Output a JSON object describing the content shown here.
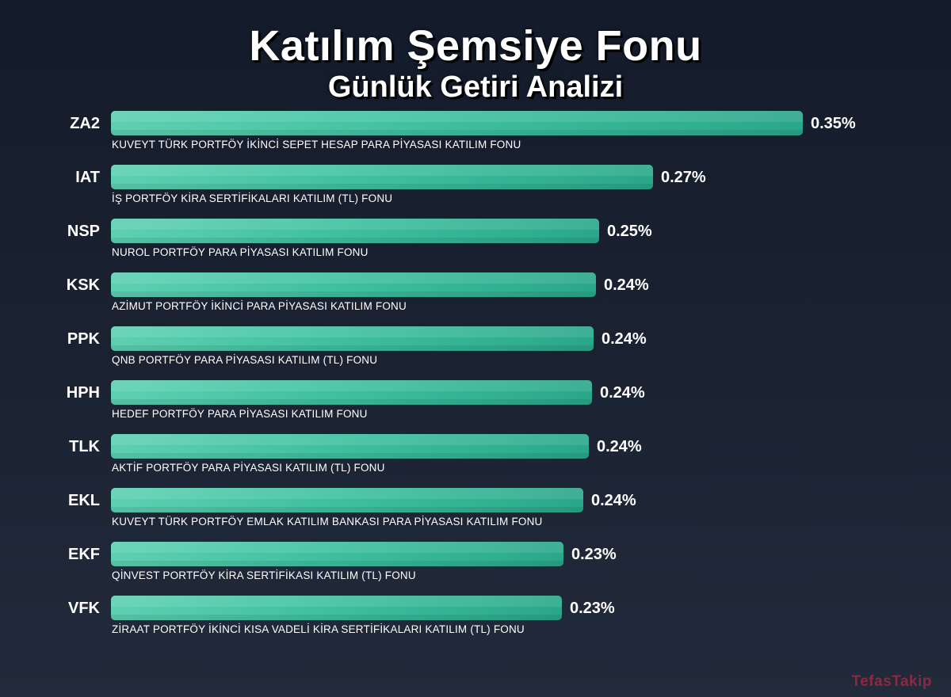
{
  "header": {
    "title": "Katılım Şemsiye Fonu",
    "subtitle": "Günlük Getiri Analizi"
  },
  "watermark": "TefasTakip",
  "colors": {
    "bar_start": "#5ed0b2",
    "bar_end": "#2aa78a",
    "background": "#1b2333",
    "watermark": "#8a2a42"
  },
  "chart_data": {
    "type": "bar",
    "orientation": "horizontal",
    "title": "Katılım Şemsiye Fonu",
    "subtitle": "Günlük Getiri Analizi",
    "xlabel": "",
    "ylabel": "",
    "grid": false,
    "unit": "%",
    "categories": [
      "ZA2",
      "IAT",
      "NSP",
      "KSK",
      "PPK",
      "HPH",
      "TLK",
      "EKL",
      "EKF",
      "VFK"
    ],
    "values": [
      0.35,
      0.27,
      0.25,
      0.24,
      0.24,
      0.24,
      0.24,
      0.24,
      0.23,
      0.23
    ],
    "bar_fraction": [
      1.0,
      0.783,
      0.706,
      0.701,
      0.698,
      0.695,
      0.691,
      0.683,
      0.654,
      0.652
    ],
    "labels": [
      "0.35%",
      "0.27%",
      "0.25%",
      "0.24%",
      "0.24%",
      "0.24%",
      "0.24%",
      "0.24%",
      "0.23%",
      "0.23%"
    ],
    "fund_names": [
      "KUVEYT TÜRK PORTFÖY İKİNCİ SEPET HESAP PARA PİYASASI KATILIM FONU",
      "İŞ PORTFÖY KİRA SERTİFİKALARI KATILIM (TL) FONU",
      "NUROL PORTFÖY PARA PİYASASI KATILIM FONU",
      "AZİMUT PORTFÖY İKİNCİ PARA PİYASASI KATILIM FONU",
      "QNB PORTFÖY PARA PİYASASI KATILIM (TL) FONU",
      "HEDEF PORTFÖY PARA PİYASASI KATILIM FONU",
      "AKTİF PORTFÖY PARA PİYASASI KATILIM (TL) FONU",
      "KUVEYT TÜRK PORTFÖY EMLAK KATILIM BANKASI PARA PİYASASI KATILIM FONU",
      "QİNVEST PORTFÖY KİRA SERTİFİKASI KATILIM (TL) FONU",
      "ZİRAAT PORTFÖY İKİNCİ KISA VADELİ KİRA SERTİFİKALARI KATILIM (TL) FONU"
    ]
  }
}
